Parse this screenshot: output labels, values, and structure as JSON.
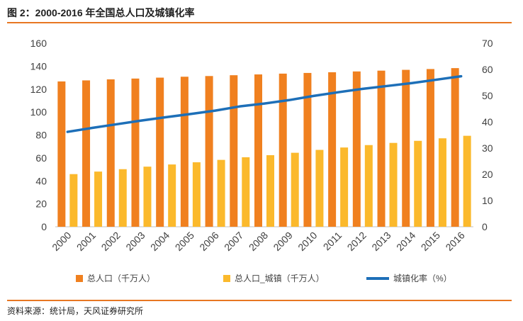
{
  "figure": {
    "title": "图 2：2000-2016 年全国总人口及城镇化率",
    "source": "资料来源：统计局，天风证券研究所"
  },
  "colors": {
    "accent_rule": "#e87722",
    "total_bar": "#f0801f",
    "urban_bar": "#fbb92c",
    "rate_line": "#1d6fb8"
  },
  "chart_data": {
    "type": "bar",
    "categories": [
      "2000",
      "2001",
      "2002",
      "2003",
      "2004",
      "2005",
      "2006",
      "2007",
      "2008",
      "2009",
      "2010",
      "2011",
      "2012",
      "2013",
      "2014",
      "2015",
      "2016"
    ],
    "series": [
      {
        "name": "总人口（千万人）",
        "type": "bar",
        "axis": "left",
        "values": [
          126.7,
          127.6,
          128.5,
          129.2,
          130.0,
          130.8,
          131.4,
          132.1,
          132.8,
          133.5,
          134.1,
          134.7,
          135.4,
          136.1,
          136.8,
          137.5,
          138.3
        ]
      },
      {
        "name": "总人口_城镇（千万人）",
        "type": "bar",
        "axis": "left",
        "values": [
          45.9,
          48.1,
          50.2,
          52.4,
          54.3,
          56.2,
          58.3,
          60.6,
          62.4,
          64.5,
          67.0,
          69.1,
          71.2,
          73.1,
          74.9,
          77.1,
          79.3
        ]
      },
      {
        "name": "城镇化率（%）",
        "type": "line",
        "axis": "right",
        "values": [
          36.2,
          37.7,
          39.1,
          40.5,
          41.8,
          43.0,
          44.3,
          45.9,
          47.0,
          48.3,
          49.9,
          51.3,
          52.6,
          53.7,
          54.8,
          56.1,
          57.4
        ]
      }
    ],
    "y_left": {
      "min": 0,
      "max": 160,
      "ticks": [
        "0",
        "20",
        "40",
        "60",
        "80",
        "100",
        "120",
        "140",
        "160"
      ]
    },
    "y_right": {
      "min": 0,
      "max": 70,
      "ticks": [
        "0",
        "10",
        "20",
        "30",
        "40",
        "50",
        "60",
        "70"
      ]
    },
    "grid": false,
    "legend_position": "bottom"
  }
}
